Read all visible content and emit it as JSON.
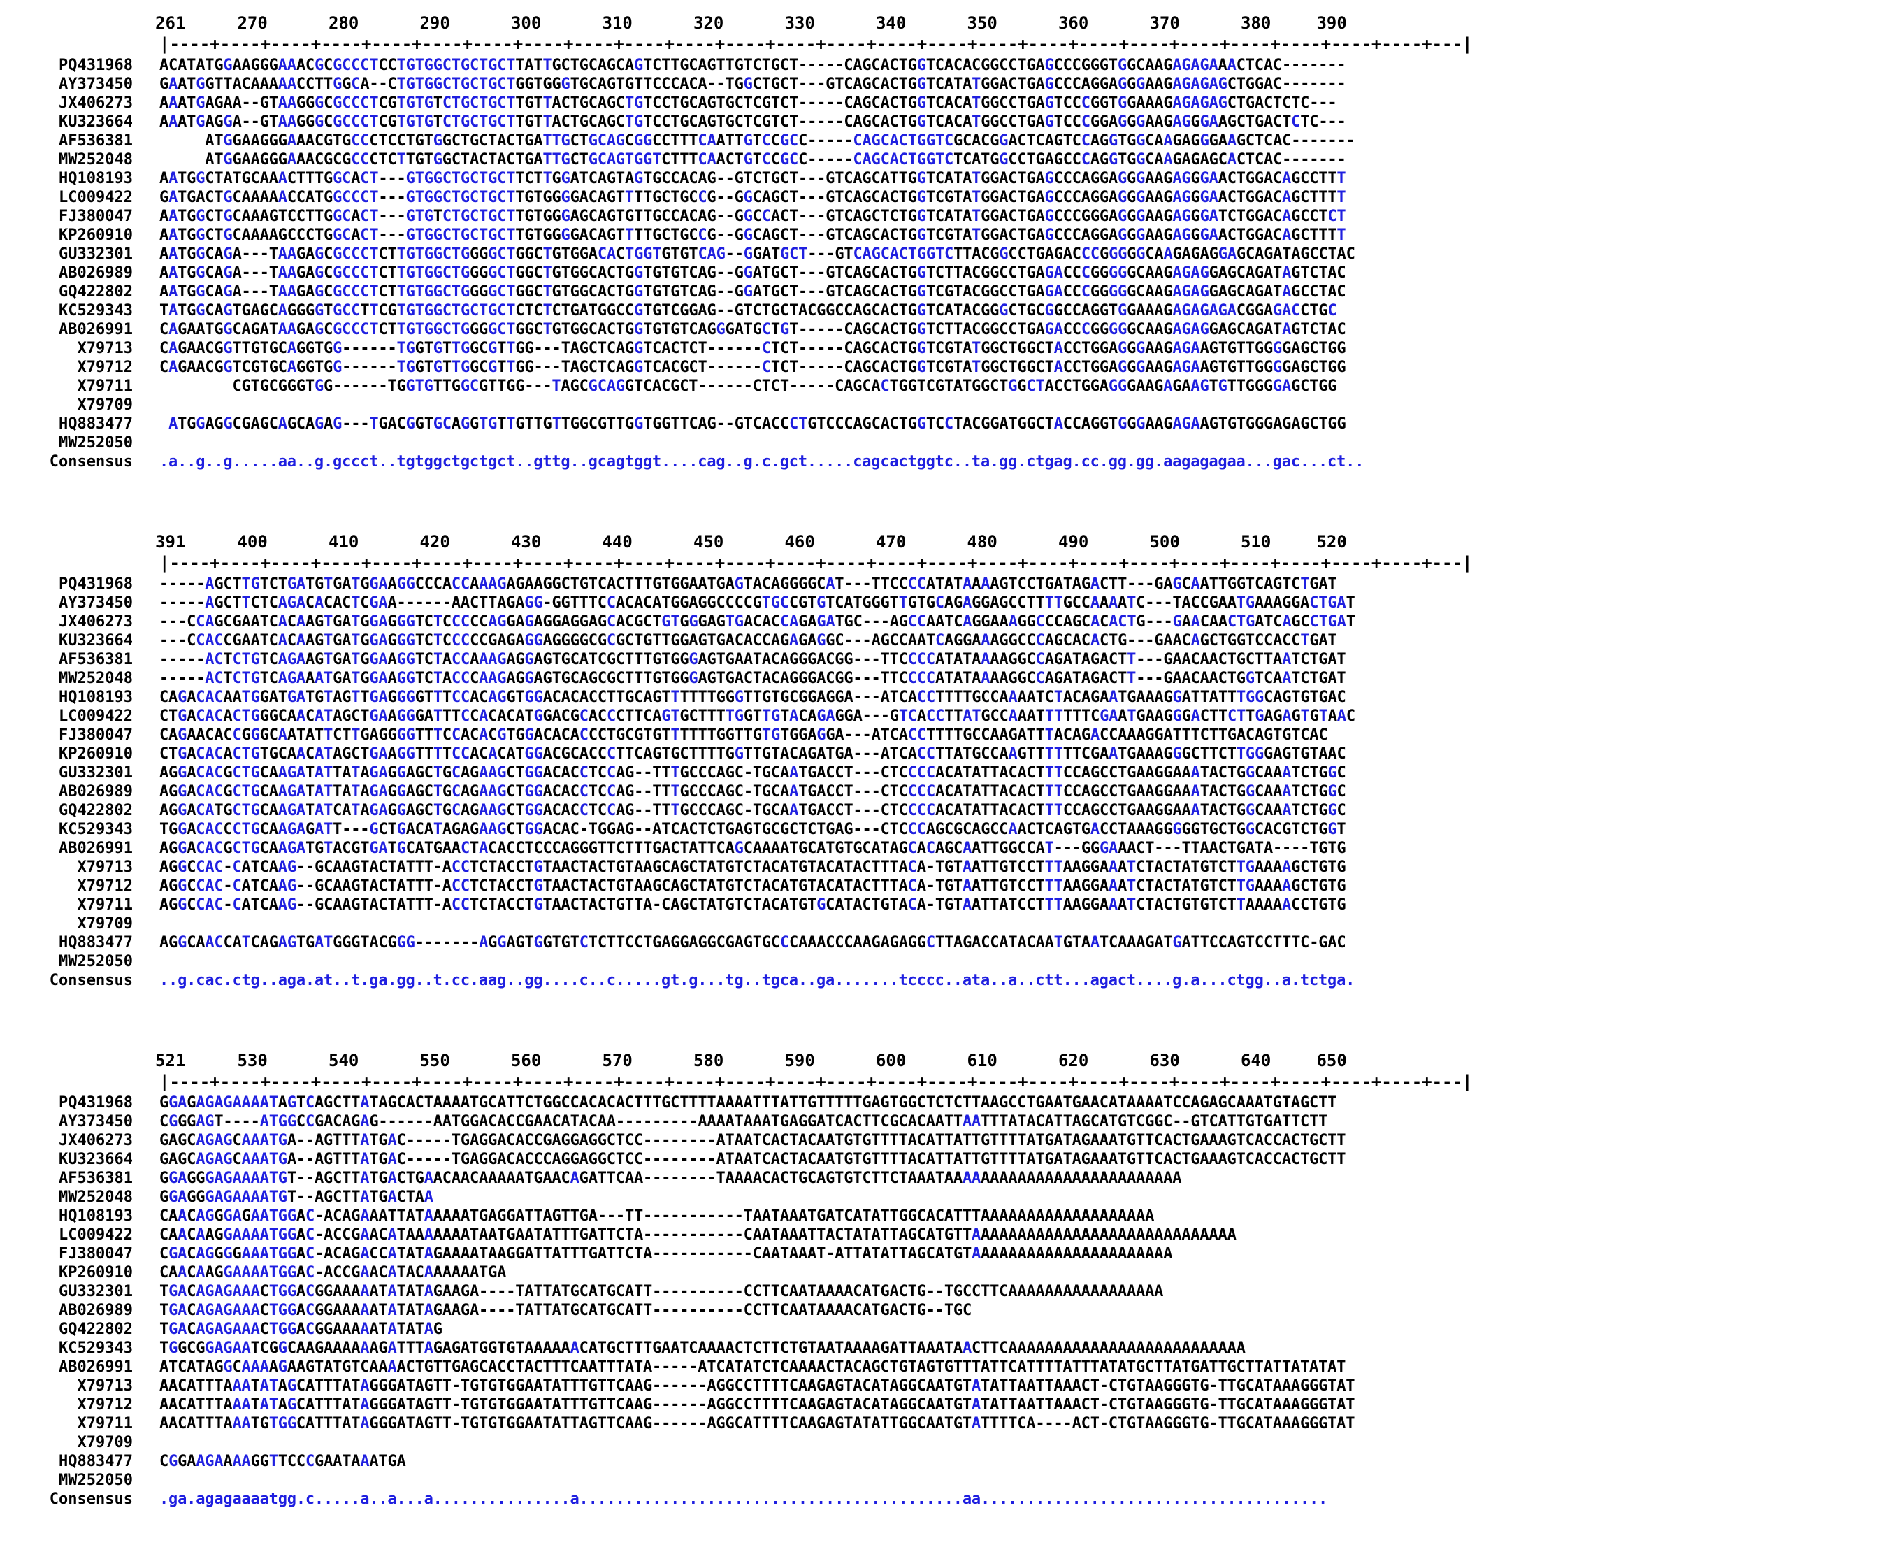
{
  "blocks": [
    {
      "ruler_numbers": [
        "261",
        "270",
        "280",
        "290",
        "300",
        "310",
        "320",
        "330",
        "340",
        "350",
        "360",
        "370",
        "380",
        "390"
      ],
      "ruler_line": "|----+----+----+----+----+----+----+----+----+----+----+----+----+----+----+----+----+----+----+----+----+----+----+----+----+---|",
      "rows": [
        {
          "label": "PQ431968",
          "seq": "ACATATGGAAGGGAAACGCGCCCTCCTGTGGCTGCTGCTTATTGCTGCAGCAGTCTTGCAGTTGTCTGCT-----CAGCACTGGTCACACGGCCTGAGCCCGGGTGGCAAGAGAGAAACTCAC-------"
        },
        {
          "label": "AY373450",
          "seq": "GAATGGTTACAAAAACCTTGGCA--CTGTGGCTGCTGCTGGTGGGTGCAGTGTTCCCACA--TGGCTGCT---GTCAGCACTGGTCATATGGACTGAGCCCAGGAGGGAAGAGAGAGCTGGAC-------"
        },
        {
          "label": "JX406273",
          "seq": "AAATGAGAA--GTAAGGGCGCCCTCGTGTGTCTGCTGCTTGTTACTGCAGCTGTCCTGCAGTGCTCGTCT-----CAGCACTGGTCACATGGCCTGAGTCCCGGTGGAAAGAGAGAGCTGACTCTC---"
        },
        {
          "label": "KU323664",
          "seq": "AAATGAGGA--GTAAGGGCGCCCTCGTGTGTCTGCTGCTTGTTACTGCAGCTGTCCTGCAGTGCTCGTCT-----CAGCACTGGTCACATGGCCTGAGTCCCGGAGGGAAGAGGGAAGCTGACTCTC---"
        },
        {
          "label": "AF536381",
          "seq": "     ATGGAAGGGAAACGTGCCCTCCTGTGGCTGCTACTGATTGCTGCAGCGGCCTTTCAATTGTCCGCC-----CAGCACTGGTCGCACGGACTCAGTCCAGGTGGCAAGAGGGAAGCTCAC-------"
        },
        {
          "label": "MW252048",
          "seq": "     ATGGAAGGGAAACGCGCCCTCTTGTGGCTACTACTGATTGCTGCAGTGGTCTTTCAACTGTCCGCC-----CAGCACTGGTCTCATGGCCTGAGCCCAGGTGGCAAGAGAGCACTCAC-------"
        },
        {
          "label": "HQ108193",
          "seq": "AATGGCTATGCAAACTTTGGCACT---GTGGCTGCTGCTTCTTGGATCAGTAGTGCCACAG--GTCTGCT---GTCAGCATTGGTCATATGGACTGAGCCCAGGAGGGAAGAGGGAACTGGACAGCCTTT"
        },
        {
          "label": "LC009422",
          "seq": "GATGACTGCAAAAACCATGGCCCT---GTGGCTGCTGCTTGTGGGGACAGTTTTGCTGCCG--GGCAGCT---GTCAGCACTGGTCGTATGGACTGAGCCCAGGAGGGAAGAGGGAACTGGACAGCTTTT"
        },
        {
          "label": "FJ380047",
          "seq": "AATGGCTGCAAAGTCCTTGGCACT---GTGTCTGCTGCTTGTGGGAGCAGTGTTGCCACAG--GGCCACT---GTCAGCTCTGGTCATATGGACTGAGCCCGGGAGGGAAGAGGGATCTGGACAGCCTCT"
        },
        {
          "label": "KP260910",
          "seq": "AATGGCTGCAAAAGCCCTGGCACT---GTGGCTGCTGCTTGTGGGGACAGTTTTGCTGCCG--GGCAGCT---GTCAGCACTGGTCGTATGGACTGAGCCCAGGAGGGAAGAGGGAACTGGACAGCTTTT"
        },
        {
          "label": "GU332301",
          "seq": "AATGGCAGA---TAAGAGCGCCCTCTTGTGGCTGGGGCTGGCTGTGGACACTGGTGTGTCAG--GGATGCT---GTCAGCACTGGTCTTACGGCCTGAGACCCGGGGGCAAGAGAGGAGCAGATAGCCTAC"
        },
        {
          "label": "AB026989",
          "seq": "AATGGCAGA---TAAGAGCGCCCTCTTGTGGCTGGGGCTGGCTGTGGCACTGGTGTGTCAG--GGATGCT---GTCAGCACTGGTCTTACGGCCTGAGACCCGGGGGCAAGAGAGGAGCAGATAGTCTAC"
        },
        {
          "label": "GQ422802",
          "seq": "AATGGCAGA---TAAGAGCGCCCTCTTGTGGCTGGGGCTGGCTGTGGCACTGGTGTGTCAG--GGATGCT---GTCAGCACTGGTCGTACGGCCTGAGACCCGGGGGCAAGAGAGGAGCAGATAGCCTAC"
        },
        {
          "label": "KC529343",
          "seq": "TATGGCAGTGAGCAGGGGTGCCTTCGTGTGGCTGCTGCTCTCTCTGATGGCCGTGTCGGAG--GTCTGCTACGGCCAGCACTGGTCATACGGGCTGCGGCCAGGTGGAAAGAGAGAGACGGAGACCTGC"
        },
        {
          "label": "AB026991",
          "seq": "CAGAATGGCAGATAAGAGCGCCCTCTTGTGGCTGGGGCTGGCTGTGGCACTGGTGTGTCAGGGATGCTGT-----CAGCACTGGTCTTACGGCCTGAGACCCGGGGGCAAGAGAGGAGCAGATAGTCTAC"
        },
        {
          "label": "X79713",
          "seq": "CAGAACGGTTGTGCAGGTGG------TGGTGTTGGCGTTGG---TAGCTCAGGTCACTCT------CTCT-----CAGCACTGGTCGTATGGCTGGCTACCTGGAGGGAAGAGAAGTGTTGGGGAGCTGG"
        },
        {
          "label": "X79712",
          "seq": "CAGAACGGTCGTGCAGGTGG------TGGTGTTGGCGTTGG---TAGCTCAGGTCACGCT------CTCT-----CAGCACTGGTCGTATGGCTGGCTACCTGGAGGGAAGAGAAGTGTTGGGGAGCTGG"
        },
        {
          "label": "X79711",
          "seq": "        CGTGCGGGTGG------TGGTGTTGGCGTTGG---TAGCGCAGGTCACGCT------CTCT-----CAGCACTGGTCGTATGGCTGGCTACCTGGAGGGAAGAGAAGTGTTGGGGAGCTGG"
        },
        {
          "label": "X79709",
          "seq": ""
        },
        {
          "label": "HQ883477",
          "seq": " ATGGAGGCGAGCAGCAGAG---TGACGGTGCAGGTGTTGTTGTTGGCGTTGGTGGTTCAG--GTCACCCTGTCCCAGCACTGGTCCTACGGATGGCTACCAGGTGGGAAGAGAAGTGTGGGAGAGCTGG"
        },
        {
          "label": "MW252050",
          "seq": ""
        }
      ],
      "consensus": {
        "label": "Consensus",
        "seq": ".a..g..g.....aa..g.gccct..tgtggctgctgct..gttg..gcagtggt....cag..g.c.gct.....cagcactggtc..ta.gg.ctgag.cc.gg.gg.aagagagaa...gac...ct.."
      }
    },
    {
      "ruler_numbers": [
        "391",
        "400",
        "410",
        "420",
        "430",
        "440",
        "450",
        "460",
        "470",
        "480",
        "490",
        "500",
        "510",
        "520"
      ],
      "ruler_line": "|----+----+----+----+----+----+----+----+----+----+----+----+----+----+----+----+----+----+----+----+----+----+----+----+----+---|",
      "rows": [
        {
          "label": "PQ431968",
          "seq": "-----AGCTTGTCTGATGTGATGGAAGGCCCACCAAAGAGAAGGCTGTCACTTTGTGGAATGAGTACAGGGGCAT---TTCCCCATATAAAAGTCCTGATAGACTT---GAGCAATTGGTCAGTCTGAT"
        },
        {
          "label": "AY373450",
          "seq": "-----AGCTTCTCAGACACACTCGAA------AACTTAGAGG-GGTTTCCACACATGGAGGCCCCGTGCCGTGTCATGGGTTGTGCAGAGGAGCCTTTTGCCAAAATC---TACCGAATGAAAGGACTGAT"
        },
        {
          "label": "JX406273",
          "seq": "---CCAGCGAATCACAAGTGATGGAGGGTCTCCCCCAGGAGAGGAGGAGCACGCTGTGGGAGTGACACCAGAGATGC---AGCCAATCAGGAAAGGCCCAGCACACTG---GAACAACTGATCAGCCTGAT"
        },
        {
          "label": "KU323664",
          "seq": "---CCACCGAATCACAAGTGATGGAGGGTCTCCCCCGAGAGGAGGGGCGCGCTGTTGGAGTGACACCAGAGAGGC---AGCCAATCAGGAAAGGCCCAGCACACTG---GAACAGCTGGTCCACCTGAT"
        },
        {
          "label": "AF536381",
          "seq": "-----ACTCTGTCAGAAGTGATGGAAGGTCTACCAAAGAGGAGTGCATCGCTTTGTGGGAGTGAATACAGGGACGG---TTCCCCATATAAAAGGCCAGATAGACTT---GAACAACTGCTTAATCTGAT"
        },
        {
          "label": "MW252048",
          "seq": "-----ACTCTGTCAGAAATGATGGAAGGTCTACCCAAGAGGAGTGCAGCGCTTTGTGGGAGTGACTACAGGGACGG---TTCCCCATATAAAAGGCCAGATAGACTT---GAACAACTGGTCAATCTGAT"
        },
        {
          "label": "HQ108193",
          "seq": "CAGACACAATGGATGATGTAGTTGAGGGGTTTCCACAGGTGGACACACCTTGCAGTTTTTTGGGTTGTGCGGAGGA---ATCACCTTTTGCCAAAATCTACAGAATGAAAGGATTATTTGGCAGTGTGAC"
        },
        {
          "label": "LC009422",
          "seq": "CTGACACACTGGGCAACATAGCTGAAGGGATTTCCACACATGGACGCACCCTTCAGTGCTTTTGGTTGTACAGAGGA---GTCACCTTATGCCAAATTTTTTCGAATGAAGGGACTTCTTGAGAGTGTAAC"
        },
        {
          "label": "FJ380047",
          "seq": "CAGAACACCGGGCAATATTCTTGAGGGGTTTCCACACGTGGACACACCCTGCGTGTTTTTTGGTTGTGTGGAGGA---ATCACCTTTTGCCAAGATTTACAGACCAAAGGATTTCTTGACAGTGTCAC"
        },
        {
          "label": "KP260910",
          "seq": "CTGACACACTGTGCAACATAGCTGAAGGTTTTCCACACATGGACGCACCCTTCAGTGCTTTTGGTTGTACAGATGA---ATCACCTTATGCCAAGTTTTTTCGAATGAAAGGGCTTCTTGGGAGTGTAAC"
        },
        {
          "label": "GU332301",
          "seq": "AGGACACGCTGCAAGATATTATAGAGGAGCTGCAGAAGCTGGACACCTCCAG--TTTGCCCAGC-TGCAATGACCT---CTCCCCACATATTACACTTTCCAGCCTGAAGGAAATACTGGCAAATCTGGC"
        },
        {
          "label": "AB026989",
          "seq": "AGGACACGCTGCAAGATATTATAGAGGAGCTGCAGAAGCTGGACACCTCCAG--TTTGCCCAGC-TGCAATGACCT---CTCCCCACATATTACACTTTCCAGCCTGAAGGAAATACTGGCAAATCTGGC"
        },
        {
          "label": "GQ422802",
          "seq": "AGGACATGCTGCAAGATATCATAGAGGAGCTGCAGAAGCTGGACACCTCCAG--TTTGCCCAGC-TGCAATGACCT---CTCCCCACATATTACACTTTCCAGCCTGAAGGAAATACTGGCAAATCTGGC"
        },
        {
          "label": "KC529343",
          "seq": "TGGACACCCTGCAAGAGATT---GCTGACATAGAGAAGCTGGACAC-TGGAG--ATCACTCTGAGTGCGCTCTGAG---CTCCCAGCGCAGCCAACTCAGTGACCTAAAGGGGGTGCTGGCACGTCTGGT"
        },
        {
          "label": "AB026991",
          "seq": "AGGACACGCTGCAAGATGTACGTGATGCATGAACTACACCTCCCAGGGTTCTTTGACTATTCAGCAAAATGCATGTGCATAGCACAGCAATTGGCCAT---GGGAAACT---TTAACTGATA----TGTG"
        },
        {
          "label": "X79713",
          "seq": "AGGCCAC-CATCAAG--GCAAGTACTATTT-ACCTCTACCTGTAACTACTGTAAGCAGCTATGTCTACATGTACATACTTTACA-TGTAATTGTCCTTTAAGGAAATCTACTATGTCTTGAAAAGCTGTG"
        },
        {
          "label": "X79712",
          "seq": "AGGCCAC-CATCAAG--GCAAGTACTATTT-ACCTCTACCTGTAACTACTGTAAGCAGCTATGTCTACATGTACATACTTTACA-TGTAATTGTCCTTTAAGGAAATCTACTATGTCTTGAAAAGCTGTG"
        },
        {
          "label": "X79711",
          "seq": "AGGCCAC-CATCAAG--GCAAGTACTATTT-ACCTCTACCTGTAACTACTGTTA-CAGCTATGTCTACATGTGCATACTGTACA-TGTAATTATCCTTTAAGGAAATCTACTGTGTCTTAAAAACCTGTG"
        },
        {
          "label": "X79709",
          "seq": ""
        },
        {
          "label": "HQ883477",
          "seq": "AGGCAACCATCAGAGTGATGGGTACGGG-------AGGAGTGGTGTCTCTTCCTGAGGAGGCGAGTGCCCAAACCCAAGAGAGGCTTAGACCATACAATGTAATCAAAGATGATTCCAGTCCTTTC-GAC"
        },
        {
          "label": "MW252050",
          "seq": ""
        }
      ],
      "consensus": {
        "label": "Consensus",
        "seq": "..g.cac.ctg..aga.at..t.ga.gg..t.cc.aag..gg....c..c.....gt.g...tg..tgca..ga.......tcccc..ata..a..ctt...agact....g.a...ctgg..a.tctga."
      }
    },
    {
      "ruler_numbers": [
        "521",
        "530",
        "540",
        "550",
        "560",
        "570",
        "580",
        "590",
        "600",
        "610",
        "620",
        "630",
        "640",
        "650"
      ],
      "ruler_line": "|----+----+----+----+----+----+----+----+----+----+----+----+----+----+----+----+----+----+----+----+----+----+----+----+----+---|",
      "rows": [
        {
          "label": "PQ431968",
          "seq": "GGAGAGAGAAAATAGTCAGCTTATAGCACTAAAATGCATTCTGGCCACACACTTTGCTTTTAAAATTTATTGTTTTTGAGTGGCTCTCTTAAGCCTGAATGAACATAAAATCCAGAGCAAATGTAGCTT"
        },
        {
          "label": "AY373450",
          "seq": "CGGGAGT----ATGGCCGACAGAG------AATGGACACCGAACATACAA---------AAAATAAATGAGGATCACTTCGCACAATTAATTTATACATTAGCATGTCGGC--GTCATTGTGATTCTT"
        },
        {
          "label": "JX406273",
          "seq": "GAGCAGAGCAAATGA--AGTTTATGAC-----TGAGGACACCGAGGAGGCTCC--------ATAATCACTACAATGTGTTTTACATTATTGTTTTATGATAGAAATGTTCACTGAAAGTCACCACTGCTT"
        },
        {
          "label": "KU323664",
          "seq": "GAGCAGAGCAAATGA--AGTTTATGAC-----TGAGGACACCCAGGAGGCTCC--------ATAATCACTACAATGTGTTTTACATTATTGTTTTATGATAGAAATGTTCACTGAAAGTCACCACTGCTT"
        },
        {
          "label": "AF536381",
          "seq": "GGAGGGAGAAAATGT--AGCTTATGACTGAACAACAAAAATGAACAGATTCAA--------TAAAACACTGCAGTGTCTTCTAAATAAAAAAAAAAAAAAAAAAAAAAAAAA"
        },
        {
          "label": "MW252048",
          "seq": "GGAGGGAGAAAATGT--AGCTTATGACTAA"
        },
        {
          "label": "HQ108193",
          "seq": "CAACAGGGAGAATGGAC-ACAGAAATTATAAAAATGAGGATTAGTTGA---TT-----------TAATAAATGATCATATTGGCACATTTAAAAAAAAAAAAAAAAAAA"
        },
        {
          "label": "LC009422",
          "seq": "CAACAAGGAAAATGGAC-ACCGAACATAAAAAAATAATGAATATTTGATTCTA-----------CAATAAATTACTATATTAGCATGTTAAAAAAAAAAAAAAAAAAAAAAAAAAAAA"
        },
        {
          "label": "FJ380047",
          "seq": "CGACAGGGGAAATGGAC-ACAGACCATATAGAAAATAAGGATTATTTGATTCTA-----------CAATAAAT-ATTATATTAGCATGTAAAAAAAAAAAAAAAAAAAAAA"
        },
        {
          "label": "KP260910",
          "seq": "CAACAAGGAAAATGGAC-ACCGAACATACAAAAAATGA"
        },
        {
          "label": "GU332301",
          "seq": "TGACAGAGAAACTGGACGGAAAAATATATAGAAGA----TATTATGCATGCATT----------CCTTCAATAAAACATGACTG--TGCCTTCAAAAAAAAAAAAAAAAA"
        },
        {
          "label": "AB026989",
          "seq": "TGACAGAGAAACTGGACGGAAAAATATATAGAAGA----TATTATGCATGCATT----------CCTTCAATAAAACATGACTG--TGC"
        },
        {
          "label": "GQ422802",
          "seq": "TGACAGAGAAACTGGACGGAAAAATATATAG"
        },
        {
          "label": "KC529343",
          "seq": "TGGCGGAGAATCGGCAAGAAAAAAGATTTAGAGATGGTGTAAAAAACATGCTTTGAATCAAAACTCTTCTGTAATAAAAGATTAAATAACTTCAAAAAAAAAAAAAAAAAAAAAAAAAA"
        },
        {
          "label": "AB026991",
          "seq": "ATCATAGGCAAAAGAAGTATGTCAAAACTGTTGAGCACCTACTTTCAATTTATA-----ATCATATCTCAAAACTACAGCTGTAGTGTTTATTCATTTTATTTATATGCTTATGATTGCTTATTATATAT"
        },
        {
          "label": "X79713",
          "seq": "AACATTTAAATATAGCATTTATAGGGATAGTT-TGTGTGGAATATTTGTTCAAG------AGGCCTTTTCAAGAGTACATAGGCAATGTATATTAATTAAACT-CTGTAAGGGTG-TTGCATAAAGGGTAT"
        },
        {
          "label": "X79712",
          "seq": "AACATTTAAATATAGCATTTATAGGGATAGTT-TGTGTGGAATATTTGTTCAAG------AGGCCTTTTCAAGAGTACATAGGCAATGTATATTAATTAAACT-CTGTAAGGGTG-TTGCATAAAGGGTAT"
        },
        {
          "label": "X79711",
          "seq": "AACATTTAAATGTGGCATTTATAGGGATAGTT-TGTGTGGAATATTAGTTCAAG------AGGCATTTTCAAGAGTATATTGGCAATGTATTTTCA----ACT-CTGTAAGGGTG-TTGCATAAAGGGTAT"
        },
        {
          "label": "X79709",
          "seq": ""
        },
        {
          "label": "HQ883477",
          "seq": "CGGAAGAAAAGGTTCCCGAATAAATGA"
        },
        {
          "label": "MW252050",
          "seq": ""
        }
      ],
      "consensus": {
        "label": "Consensus",
        "seq": ".ga.agagaaaatgg.c.....a..a...a...............a..........................................aa......................................"
      }
    }
  ],
  "colors": {
    "highlight": "#1f1fe0",
    "text": "#000000",
    "background": "#ffffff"
  }
}
